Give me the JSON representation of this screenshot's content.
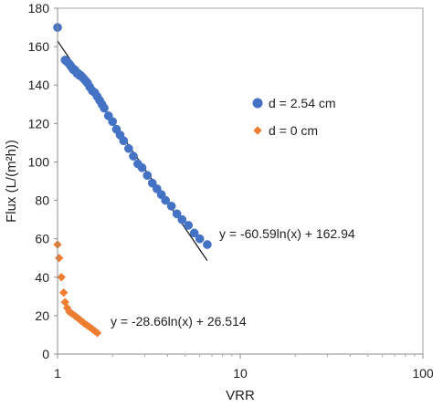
{
  "chart_data": {
    "type": "scatter",
    "xscale": "log",
    "xlim": [
      1,
      100
    ],
    "ylim": [
      0,
      180
    ],
    "xlabel": "VRR",
    "ylabel": "Flux (L/(m²h))",
    "x_ticks": [
      1,
      10,
      100
    ],
    "x_tick_labels": [
      "1",
      "10",
      "100"
    ],
    "y_ticks": [
      0,
      20,
      40,
      60,
      80,
      100,
      120,
      140,
      160,
      180
    ],
    "y_tick_labels": [
      "0",
      "20",
      "40",
      "60",
      "80",
      "100",
      "120",
      "140",
      "160",
      "180"
    ],
    "grid": false,
    "legend_position": "right",
    "series": [
      {
        "name": "d = 2.54 cm",
        "marker": "circle",
        "color": "#4472C4",
        "x": [
          1.0,
          1.1,
          1.13,
          1.16,
          1.18,
          1.2,
          1.22,
          1.24,
          1.26,
          1.28,
          1.3,
          1.32,
          1.34,
          1.37,
          1.4,
          1.43,
          1.46,
          1.5,
          1.55,
          1.6,
          1.65,
          1.7,
          1.75,
          1.8,
          1.9,
          2.0,
          2.1,
          2.2,
          2.3,
          2.45,
          2.6,
          2.75,
          2.9,
          3.1,
          3.3,
          3.5,
          3.7,
          3.9,
          4.2,
          4.5,
          4.8,
          5.2,
          5.6,
          6.0,
          6.6
        ],
        "y": [
          170,
          153,
          152,
          151,
          150,
          149,
          148,
          148,
          147,
          146,
          146,
          145,
          145,
          144,
          143,
          142,
          141,
          139,
          137,
          136,
          134,
          132,
          130,
          128,
          124,
          121,
          117,
          114,
          111,
          107,
          103,
          99,
          97,
          93,
          89,
          86,
          83,
          80,
          77,
          73,
          70,
          67,
          63,
          60,
          57
        ]
      },
      {
        "name": "d = 0 cm",
        "marker": "diamond",
        "color": "#ED7D31",
        "x": [
          1.0,
          1.02,
          1.05,
          1.08,
          1.1,
          1.13,
          1.16,
          1.2,
          1.24,
          1.28,
          1.32,
          1.36,
          1.4,
          1.45,
          1.5,
          1.55,
          1.6,
          1.65
        ],
        "y": [
          57,
          50,
          40,
          32,
          27,
          24,
          22,
          21,
          20,
          19,
          18,
          17,
          16,
          15,
          14,
          13,
          12,
          11
        ]
      }
    ],
    "trendlines": [
      {
        "series": "d = 2.54 cm",
        "a": -60.59,
        "b": 162.94,
        "x_range": [
          1.0,
          6.6
        ],
        "equation": "y = -60.59ln(x) + 162.94"
      },
      {
        "series": "d = 0 cm",
        "a": -28.66,
        "b": 26.514,
        "x_range": [
          1.25,
          1.68
        ],
        "equation": "y = -28.66ln(x) + 26.514"
      }
    ]
  }
}
